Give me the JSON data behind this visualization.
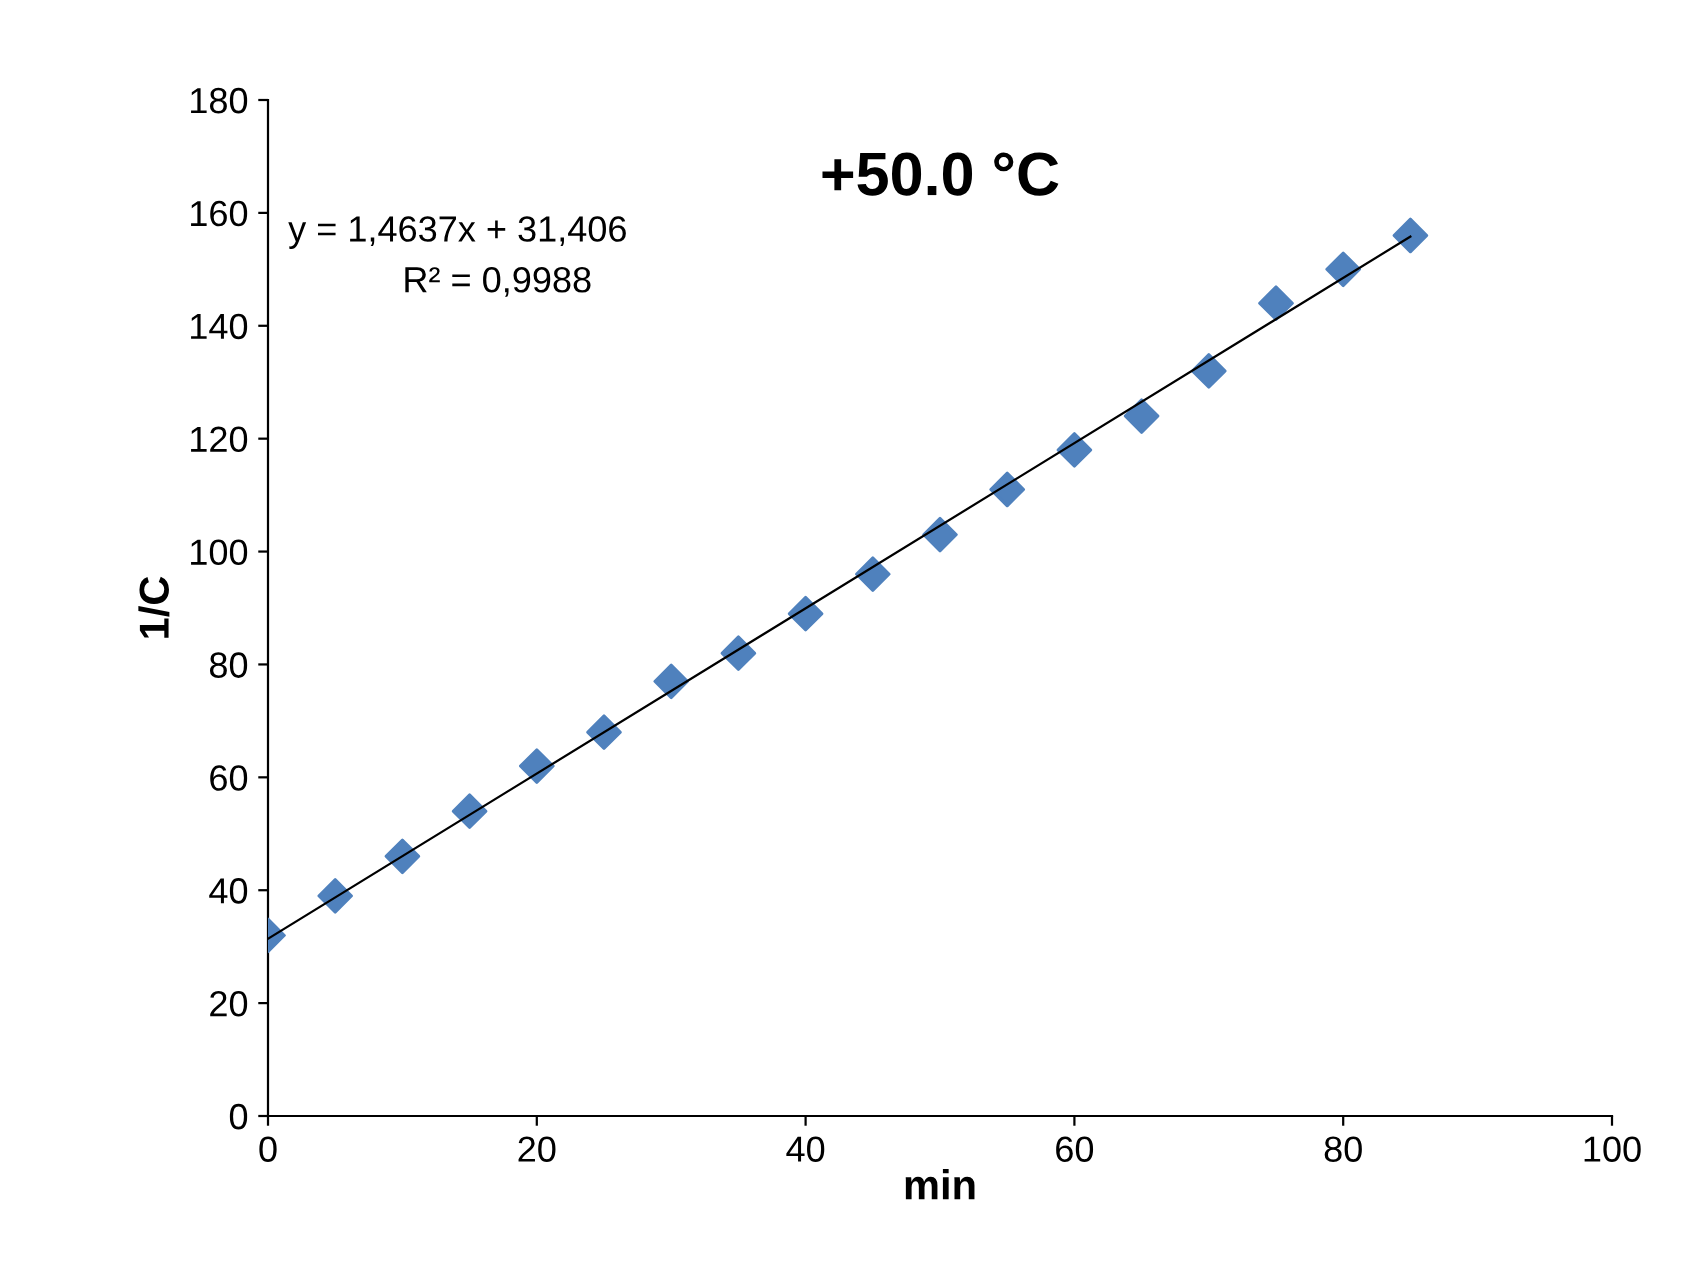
{
  "chart_data": {
    "type": "scatter",
    "title": "+50.0 °C",
    "xlabel": "min",
    "ylabel": "1/C",
    "annotations": [
      "y = 1,4637x + 31,406",
      "R² = 0,9988"
    ],
    "x": [
      0,
      5,
      10,
      15,
      20,
      25,
      30,
      35,
      40,
      45,
      50,
      55,
      60,
      65,
      70,
      75,
      80,
      85
    ],
    "series": [
      {
        "color": "#4f81bd",
        "marker": "diamond",
        "values": [
          32,
          39,
          46,
          54,
          62,
          68,
          77,
          82,
          89,
          96,
          103,
          111,
          118,
          124,
          132,
          144,
          150,
          156
        ]
      },
      {
        "type": "line",
        "color": "#000000",
        "x": [
          0,
          85
        ],
        "values": [
          31.4,
          155.8
        ],
        "marker": "none",
        "line_style": "solid"
      }
    ],
    "xlim": [
      0,
      100
    ],
    "xticks": [
      0,
      20,
      40,
      60,
      80,
      100
    ],
    "ylim": [
      0,
      180
    ],
    "yticks": [
      0,
      20,
      40,
      60,
      80,
      100,
      120,
      140,
      160,
      180
    ],
    "grid": false,
    "legend": false
  }
}
